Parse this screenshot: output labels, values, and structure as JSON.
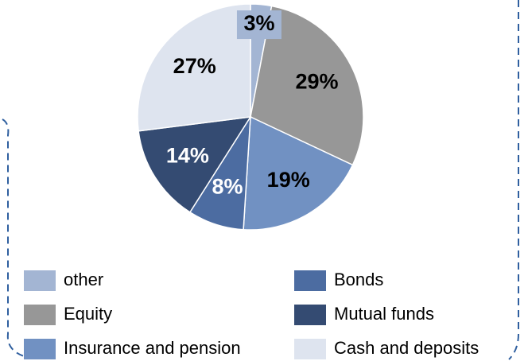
{
  "chart_data": {
    "type": "pie",
    "categories": [
      "other",
      "Equity",
      "Insurance and pension",
      "Bonds",
      "Mutual funds",
      "Cash and deposits"
    ],
    "values": [
      3,
      29,
      19,
      8,
      14,
      27
    ],
    "value_labels": [
      "3%",
      "29%",
      "19%",
      "8%",
      "14%",
      "27%"
    ],
    "colors": [
      "#a3b5d3",
      "#979797",
      "#7191c2",
      "#4c6ca1",
      "#344b72",
      "#dee4ef"
    ]
  }
}
